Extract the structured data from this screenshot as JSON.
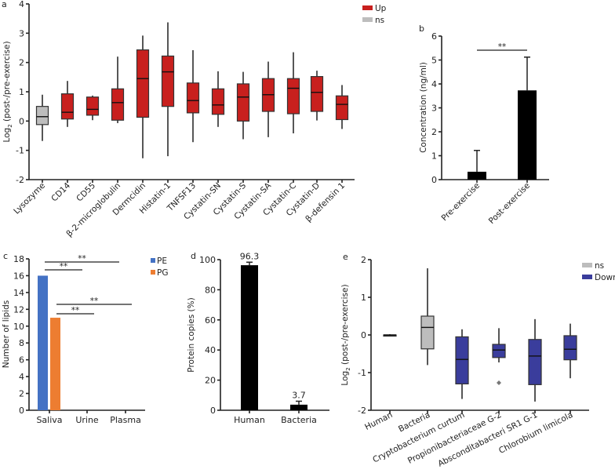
{
  "chart_data": [
    {
      "panel": "a",
      "type": "box",
      "ylabel": {
        "main": "Log",
        "sub": "2",
        "rest": " (post-/pre-exercise)"
      },
      "ylim": [
        -2,
        4
      ],
      "yticks": [
        "-2",
        "-1",
        "0",
        "1",
        "2",
        "3",
        "4"
      ],
      "legend": [
        {
          "label": "Up",
          "color": "#c8201e"
        },
        {
          "label": "ns",
          "color": "#bdbdbd"
        }
      ],
      "categories": [
        "Lysozyme",
        "CD14",
        "CD55",
        "β-2-microglobulin",
        "Dermcidin",
        "Histatin-1",
        "TNFSF13",
        "Cystatin-SN",
        "Cystatin-S",
        "Cystatin-SA",
        "Cystatin-C",
        "Cystatin-D",
        "β-defensin 1"
      ],
      "groups": [
        "ns",
        "Up",
        "Up",
        "Up",
        "Up",
        "Up",
        "Up",
        "Up",
        "Up",
        "Up",
        "Up",
        "Up",
        "Up"
      ],
      "boxes": [
        {
          "min": -0.68,
          "q1": -0.12,
          "median": 0.15,
          "q3": 0.5,
          "max": 0.9
        },
        {
          "min": -0.2,
          "q1": 0.07,
          "median": 0.3,
          "q3": 0.93,
          "max": 1.37
        },
        {
          "min": 0.03,
          "q1": 0.2,
          "median": 0.4,
          "q3": 0.82,
          "max": 0.87
        },
        {
          "min": -0.07,
          "q1": 0.03,
          "median": 0.63,
          "q3": 1.1,
          "max": 2.2
        },
        {
          "min": -1.27,
          "q1": 0.13,
          "median": 1.45,
          "q3": 2.43,
          "max": 2.92
        },
        {
          "min": -1.2,
          "q1": 0.5,
          "median": 1.68,
          "q3": 2.22,
          "max": 3.37
        },
        {
          "min": -0.72,
          "q1": 0.28,
          "median": 0.7,
          "q3": 1.3,
          "max": 2.42
        },
        {
          "min": -0.2,
          "q1": 0.23,
          "median": 0.55,
          "q3": 1.1,
          "max": 1.7
        },
        {
          "min": -0.62,
          "q1": 0.0,
          "median": 0.82,
          "q3": 1.27,
          "max": 1.68
        },
        {
          "min": -0.55,
          "q1": 0.33,
          "median": 0.9,
          "q3": 1.45,
          "max": 2.03
        },
        {
          "min": -0.42,
          "q1": 0.25,
          "median": 1.12,
          "q3": 1.45,
          "max": 2.35
        },
        {
          "min": 0.02,
          "q1": 0.33,
          "median": 0.98,
          "q3": 1.52,
          "max": 1.72
        },
        {
          "min": -0.27,
          "q1": 0.05,
          "median": 0.57,
          "q3": 0.86,
          "max": 1.23
        }
      ]
    },
    {
      "panel": "b",
      "type": "bar",
      "ylabel": "Concentration (ng/ml)",
      "ylim": [
        0,
        6
      ],
      "yticks": [
        "0",
        "1",
        "2",
        "3",
        "4",
        "5",
        "6"
      ],
      "categories": [
        "Pre-exercise",
        "Post-exercise"
      ],
      "values": [
        0.33,
        3.73
      ],
      "error_upper": [
        1.22,
        5.12
      ],
      "significance": [
        {
          "from": "Pre-exercise",
          "to": "Post-exercise",
          "label": "**"
        }
      ],
      "color": "#000000"
    },
    {
      "panel": "c",
      "type": "bar",
      "ylabel": "Number of lipids",
      "ylim": [
        0,
        18
      ],
      "yticks": [
        "0",
        "2",
        "4",
        "6",
        "8",
        "10",
        "12",
        "14",
        "16",
        "18"
      ],
      "categories": [
        "Saliva",
        "Urine",
        "Plasma"
      ],
      "series": [
        {
          "name": "PE",
          "color": "#4472c4",
          "values": [
            16,
            0,
            0
          ]
        },
        {
          "name": "PG",
          "color": "#ed7d31",
          "values": [
            11,
            0,
            0
          ]
        }
      ],
      "significance": [
        {
          "series": "PE",
          "from": "Saliva",
          "to": "Plasma",
          "label": "**"
        },
        {
          "series": "PE",
          "from": "Saliva",
          "to": "Urine",
          "label": "**"
        },
        {
          "series": "PG",
          "from": "Saliva",
          "to": "Plasma",
          "label": "**"
        },
        {
          "series": "PG",
          "from": "Saliva",
          "to": "Urine",
          "label": "**"
        }
      ]
    },
    {
      "panel": "d",
      "type": "bar",
      "ylabel": "Protein copies (%)",
      "ylim": [
        0,
        100
      ],
      "yticks": [
        "0",
        "20",
        "40",
        "60",
        "80",
        "100"
      ],
      "categories": [
        "Human",
        "Bacteria"
      ],
      "values": [
        96.3,
        3.7
      ],
      "value_labels": [
        "96.3",
        "3.7"
      ],
      "error_upper": [
        98.3,
        6.0
      ],
      "color": "#000000"
    },
    {
      "panel": "e",
      "type": "box",
      "ylabel": {
        "main": "Log",
        "sub": "2",
        "rest": " (post-/pre-exercise)"
      },
      "ylim": [
        -2,
        2
      ],
      "yticks": [
        "-2",
        "-1",
        "0",
        "1",
        "2"
      ],
      "legend": [
        {
          "label": "ns",
          "color": "#bdbdbd"
        },
        {
          "label": "Down",
          "color": "#3a3d9c"
        }
      ],
      "categories": [
        "Human",
        "Bacteria",
        "Cryptobacterium curtum",
        "Propionibacteriaceae G-2",
        "Absconditabacteri SR1 G-1",
        "Chlorobium limicola"
      ],
      "groups": [
        "none",
        "ns",
        "Down",
        "Down",
        "Down",
        "Down"
      ],
      "boxes": [
        {
          "min": -0.02,
          "q1": 0.0,
          "median": 0.0,
          "q3": 0.0,
          "max": 0.02
        },
        {
          "min": -0.8,
          "q1": -0.37,
          "median": 0.2,
          "q3": 0.5,
          "max": 1.77
        },
        {
          "min": -1.7,
          "q1": -1.3,
          "median": -0.65,
          "q3": -0.05,
          "max": 0.15
        },
        {
          "min": -0.73,
          "q1": -0.6,
          "median": -0.4,
          "q3": -0.25,
          "max": 0.18,
          "outliers": [
            -1.27
          ]
        },
        {
          "min": -1.77,
          "q1": -1.32,
          "median": -0.56,
          "q3": -0.12,
          "max": 0.42
        },
        {
          "min": -1.15,
          "q1": -0.66,
          "median": -0.38,
          "q3": -0.02,
          "max": 0.3
        }
      ]
    }
  ]
}
